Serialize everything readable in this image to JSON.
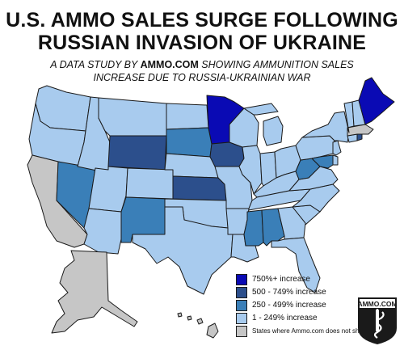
{
  "title_line1": "U.S. AMMO SALES SURGE FOLLOWING",
  "title_line2": "RUSSIAN INVASION OF UKRAINE",
  "subtitle_line1_pre": "A DATA STUDY BY ",
  "subtitle_line1_brand": "AMMO.COM",
  "subtitle_line1_post": " SHOWING AMMUNITION SALES",
  "subtitle_line2": "INCREASE DUE TO RUSSIA-UKRAINIAN WAR",
  "colors": {
    "tier1": "#0a0ab4",
    "tier2": "#2c4f8c",
    "tier3": "#3a7fb8",
    "tier4": "#a8cbee",
    "no_ship": "#c6c6c6",
    "border": "#1a1a1a"
  },
  "legend": [
    {
      "label": "750%+ increase",
      "color_key": "tier1"
    },
    {
      "label": "500 - 749% increase",
      "color_key": "tier2"
    },
    {
      "label": "250 - 499% increase",
      "color_key": "tier3"
    },
    {
      "label": "1 - 249% increase",
      "color_key": "tier4"
    },
    {
      "label": "States where Ammo.com does not ship",
      "color_key": "no_ship"
    }
  ],
  "states": {
    "WA": "tier4",
    "OR": "tier4",
    "CA": "no_ship",
    "NV": "tier3",
    "ID": "tier4",
    "MT": "tier4",
    "WY": "tier2",
    "UT": "tier4",
    "AZ": "tier4",
    "CO": "tier4",
    "NM": "tier3",
    "ND": "tier4",
    "SD": "tier3",
    "NE": "tier4",
    "KS": "tier2",
    "OK": "tier4",
    "TX": "tier4",
    "MN": "tier1",
    "IA": "tier2",
    "MO": "tier4",
    "AR": "tier4",
    "LA": "tier4",
    "WI": "tier4",
    "IL": "tier4",
    "MS": "tier3",
    "AL": "tier3",
    "MI": "tier4",
    "IN": "tier4",
    "OH": "tier4",
    "KY": "tier4",
    "TN": "tier4",
    "GA": "tier4",
    "FL": "tier4",
    "SC": "tier4",
    "NC": "tier4",
    "VA": "tier4",
    "WV": "tier3",
    "MD": "tier3",
    "DE": "tier4",
    "PA": "tier4",
    "NJ": "tier4",
    "NY": "tier4",
    "CT": "tier4",
    "RI": "tier2",
    "MA": "no_ship",
    "VT": "tier4",
    "NH": "tier4",
    "ME": "tier1",
    "AK": "no_ship",
    "HI": "no_ship"
  },
  "logo_text": "AMMO.COM"
}
